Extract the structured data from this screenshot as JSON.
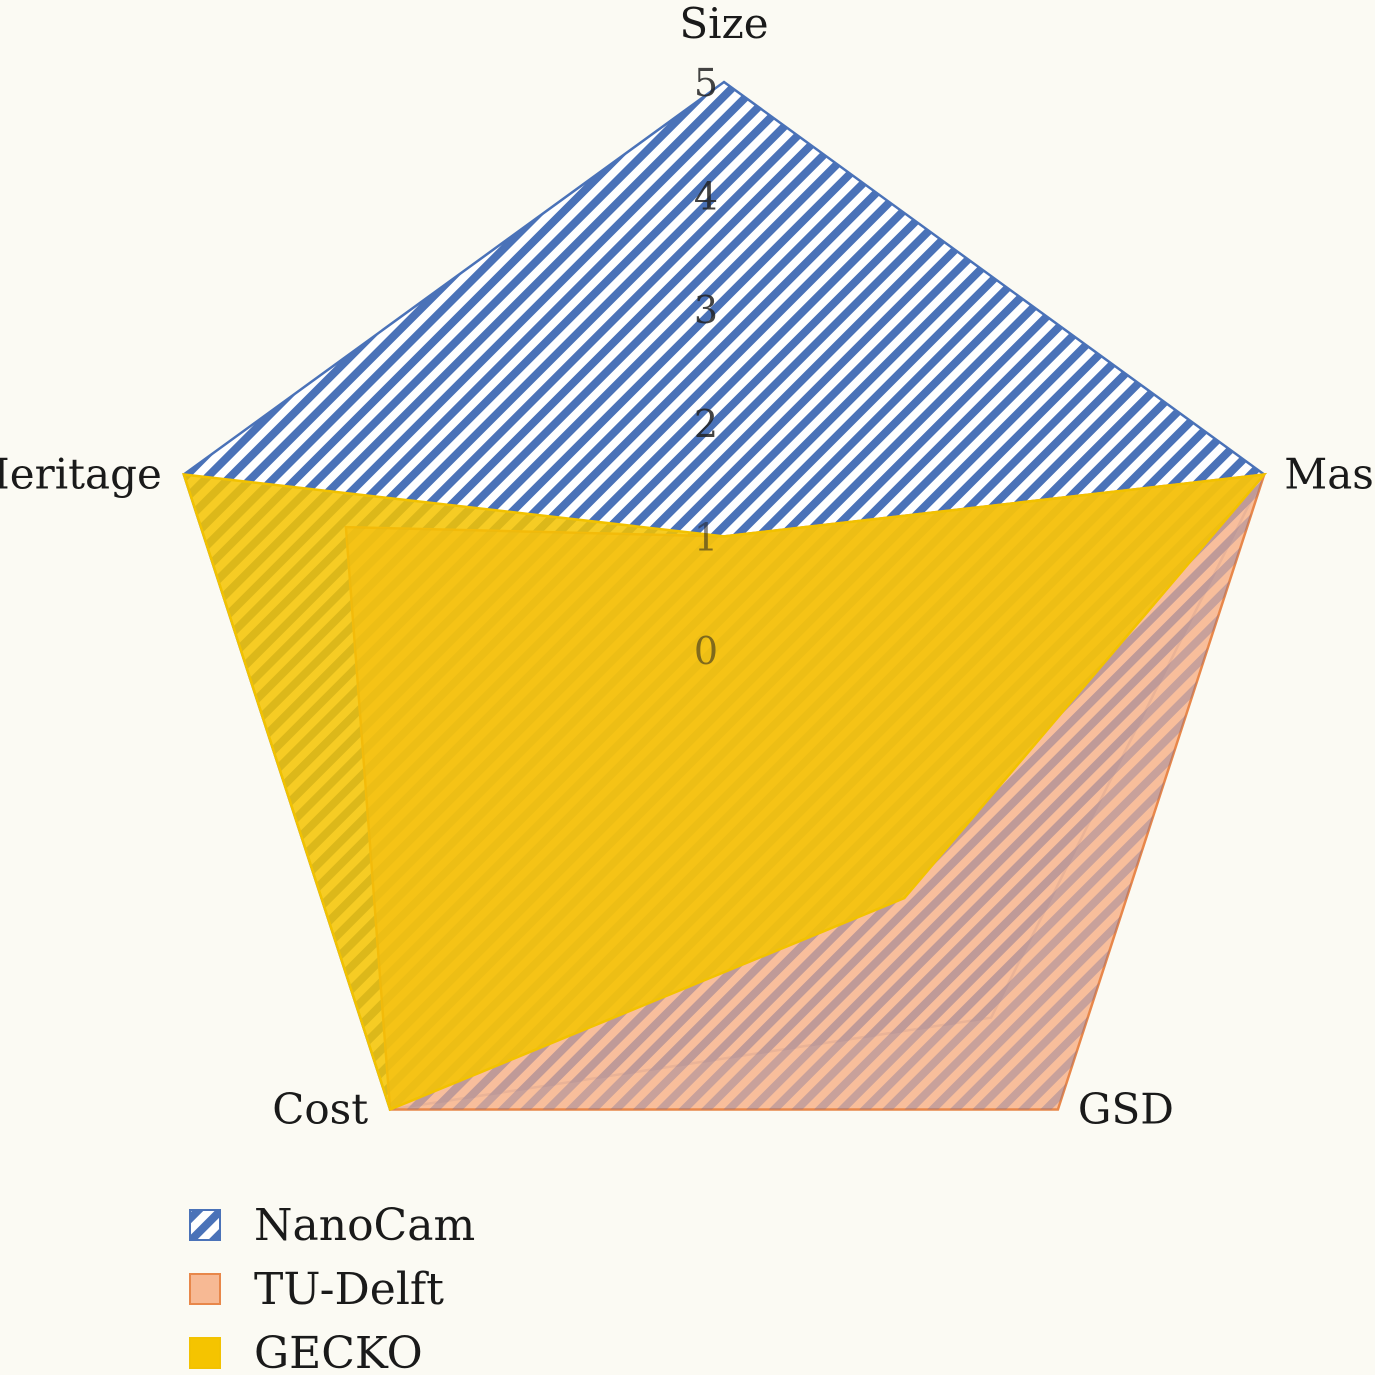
{
  "chart_data": {
    "type": "radar",
    "axes": [
      "Size",
      "Mass",
      "GSD",
      "Cost",
      "Heritage"
    ],
    "ticks": [
      "0",
      "1",
      "2",
      "3",
      "4",
      "5"
    ],
    "range": [
      0,
      5
    ],
    "series": [
      {
        "name": "NanoCam",
        "values": [
          5,
          5,
          4.0,
          5,
          5
        ],
        "color": "#4a72b8",
        "fill": "hatch-blue"
      },
      {
        "name": "TU-Delft",
        "values": [
          1,
          5,
          5,
          5,
          3.5
        ],
        "color": "#e8874a",
        "fill": "#f7b994"
      },
      {
        "name": "GECKO",
        "values": [
          1,
          5,
          2.7,
          5,
          5
        ],
        "color": "#f2c200",
        "fill": "#f5c400"
      }
    ],
    "legend": {
      "position": "bottom-left"
    }
  }
}
